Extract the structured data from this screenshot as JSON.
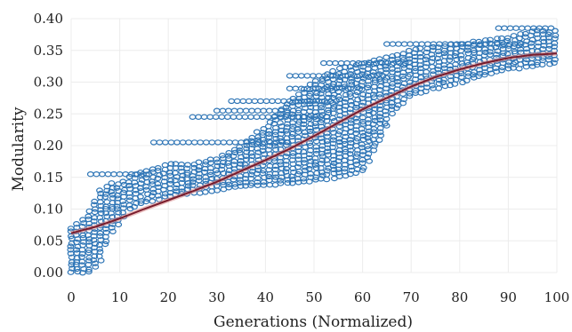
{
  "chart_data": {
    "type": "scatter",
    "xlabel": "Generations (Normalized)",
    "ylabel": "Modularity",
    "xlim": [
      0,
      100
    ],
    "ylim": [
      0.0,
      0.4
    ],
    "xticks": [
      "0",
      "10",
      "20",
      "30",
      "40",
      "50",
      "60",
      "70",
      "80",
      "90",
      "100"
    ],
    "yticks": [
      "0.00",
      "0.05",
      "0.10",
      "0.15",
      "0.20",
      "0.25",
      "0.30",
      "0.35",
      "0.40"
    ],
    "grid": true,
    "legend": "none",
    "marker": "open-circle",
    "colors": {
      "points": "#2e75b6",
      "fit": "#7a1c2c",
      "fit_band": "#d98a8a",
      "grid": "#ececec"
    },
    "series": [
      {
        "kind": "band",
        "color": "#2e75b6",
        "points": [
          {
            "x": 0,
            "low": 0.0,
            "high": 0.07
          },
          {
            "x": 2,
            "low": 0.0,
            "high": 0.08
          },
          {
            "x": 4,
            "low": 0.0,
            "high": 0.1
          },
          {
            "x": 6,
            "low": 0.02,
            "high": 0.13
          },
          {
            "x": 8,
            "low": 0.06,
            "high": 0.14
          },
          {
            "x": 10,
            "low": 0.08,
            "high": 0.14
          },
          {
            "x": 12,
            "low": 0.1,
            "high": 0.15
          },
          {
            "x": 15,
            "low": 0.11,
            "high": 0.16
          },
          {
            "x": 20,
            "low": 0.12,
            "high": 0.17
          },
          {
            "x": 25,
            "low": 0.125,
            "high": 0.17
          },
          {
            "x": 30,
            "low": 0.13,
            "high": 0.18
          },
          {
            "x": 35,
            "low": 0.135,
            "high": 0.2
          },
          {
            "x": 40,
            "low": 0.138,
            "high": 0.23
          },
          {
            "x": 45,
            "low": 0.14,
            "high": 0.27
          },
          {
            "x": 50,
            "low": 0.145,
            "high": 0.3
          },
          {
            "x": 55,
            "low": 0.15,
            "high": 0.32
          },
          {
            "x": 60,
            "low": 0.16,
            "high": 0.33
          },
          {
            "x": 63,
            "low": 0.2,
            "high": 0.335
          },
          {
            "x": 66,
            "low": 0.25,
            "high": 0.34
          },
          {
            "x": 70,
            "low": 0.28,
            "high": 0.35
          },
          {
            "x": 75,
            "low": 0.29,
            "high": 0.355
          },
          {
            "x": 80,
            "low": 0.3,
            "high": 0.36
          },
          {
            "x": 85,
            "low": 0.31,
            "high": 0.365
          },
          {
            "x": 90,
            "low": 0.32,
            "high": 0.37
          },
          {
            "x": 95,
            "low": 0.325,
            "high": 0.38
          },
          {
            "x": 100,
            "low": 0.33,
            "high": 0.38
          }
        ]
      },
      {
        "kind": "strips",
        "color": "#2e75b6",
        "strips": [
          {
            "y": 0.155,
            "x0": 4,
            "x1": 16
          },
          {
            "y": 0.205,
            "x0": 17,
            "x1": 45
          },
          {
            "y": 0.245,
            "x0": 25,
            "x1": 53
          },
          {
            "y": 0.255,
            "x0": 30,
            "x1": 45
          },
          {
            "y": 0.27,
            "x0": 33,
            "x1": 55
          },
          {
            "y": 0.29,
            "x0": 45,
            "x1": 60
          },
          {
            "y": 0.31,
            "x0": 45,
            "x1": 65
          },
          {
            "y": 0.33,
            "x0": 52,
            "x1": 70
          },
          {
            "y": 0.36,
            "x0": 65,
            "x1": 93
          },
          {
            "y": 0.385,
            "x0": 88,
            "x1": 100
          }
        ]
      },
      {
        "kind": "fit",
        "color": "#7a1c2c",
        "x": [
          0,
          5,
          10,
          15,
          20,
          25,
          30,
          35,
          40,
          45,
          50,
          55,
          60,
          65,
          70,
          75,
          80,
          85,
          90,
          95,
          100
        ],
        "y": [
          0.062,
          0.072,
          0.085,
          0.1,
          0.114,
          0.128,
          0.143,
          0.16,
          0.177,
          0.195,
          0.215,
          0.236,
          0.257,
          0.275,
          0.293,
          0.308,
          0.32,
          0.33,
          0.338,
          0.343,
          0.345
        ]
      }
    ]
  }
}
